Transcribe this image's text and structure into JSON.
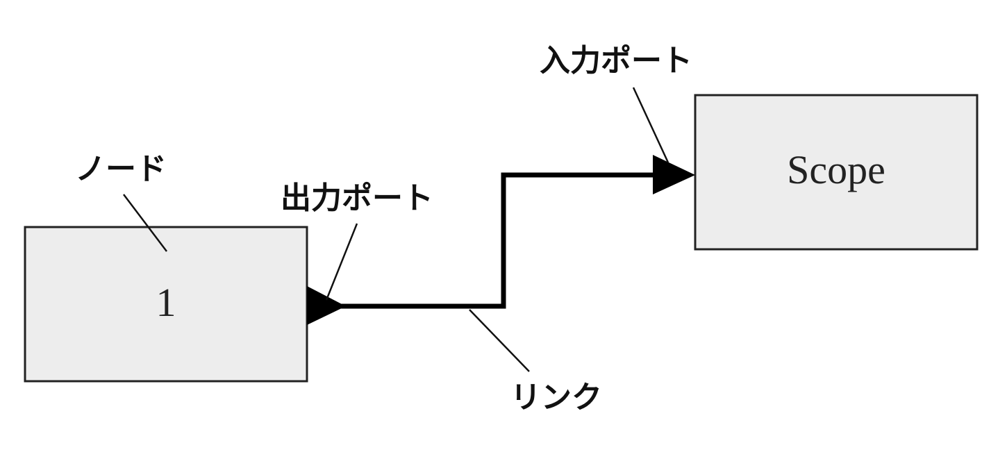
{
  "colors": {
    "block_fill": "#ededed",
    "block_border": "#222222",
    "link": "#000000",
    "text": "#111111",
    "background": "#ffffff"
  },
  "nodes": {
    "source": {
      "label": "1"
    },
    "scope": {
      "label": "Scope"
    }
  },
  "callouts": {
    "node": "ノード",
    "output_port": "出力ポート",
    "input_port": "入力ポート",
    "link": "リンク"
  }
}
